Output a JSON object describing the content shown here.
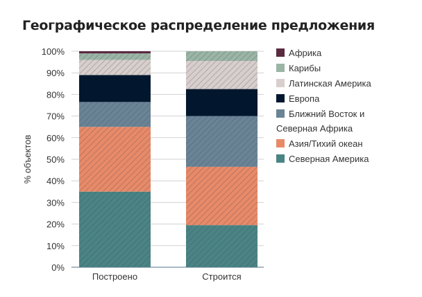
{
  "chart_data": {
    "type": "bar",
    "stacked": true,
    "title": "Географическое распределение предложения",
    "ylabel": "% объектов",
    "xlabel": "",
    "ylim": [
      0,
      100
    ],
    "yticks": [
      "0%",
      "10%",
      "20%",
      "30%",
      "40%",
      "50%",
      "60%",
      "70%",
      "80%",
      "90%",
      "100%"
    ],
    "categories": [
      "Построено",
      "Строится"
    ],
    "grid": true,
    "legend_position": "right",
    "series": [
      {
        "name": "Северная Америка",
        "color": "#4a8484",
        "values": [
          35,
          19.5
        ]
      },
      {
        "name": "Азия/Тихий океан",
        "color": "#e88a68",
        "values": [
          30,
          27
        ]
      },
      {
        "name": "Ближний Восток и Северная Африка",
        "legend_lines": [
          "Ближний Восток и",
          "Северная Африка"
        ],
        "color": "#6a8496",
        "values": [
          11.5,
          23.5
        ]
      },
      {
        "name": "Европа",
        "color": "#02172e",
        "values": [
          12.5,
          12.5
        ]
      },
      {
        "name": "Латинская Америка",
        "color": "#d8cfcc",
        "values": [
          7,
          13
        ]
      },
      {
        "name": "Карибы",
        "color": "#9bb5a5",
        "values": [
          3,
          4.5
        ]
      },
      {
        "name": "Африка",
        "color": "#5a2a40",
        "values": [
          1,
          0
        ]
      }
    ]
  }
}
